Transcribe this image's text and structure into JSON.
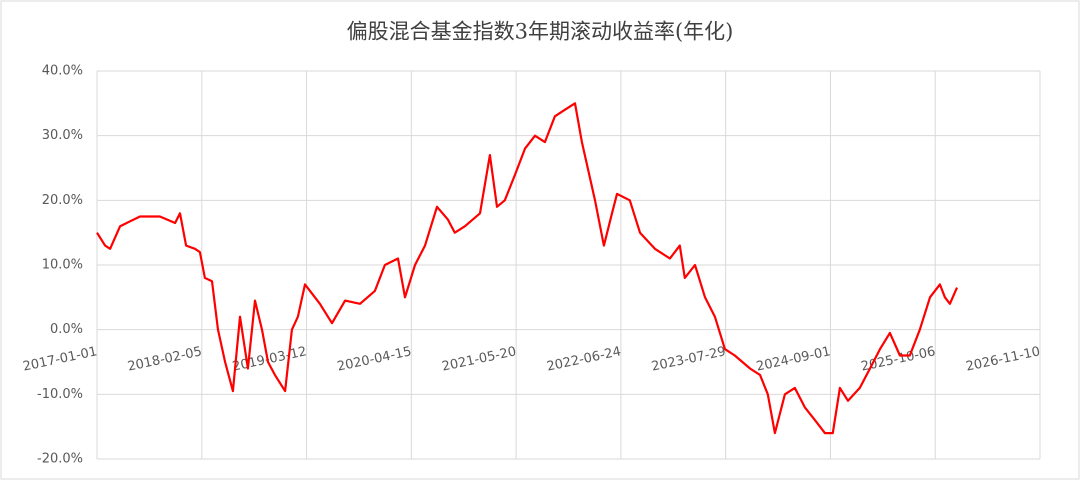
{
  "chart_data": {
    "type": "line",
    "title": "偏股混合基金指数3年期滚动收益率(年化)",
    "x": [
      "2017-01-01",
      "2017-02-01",
      "2017-02-20",
      "2017-03-30",
      "2017-06-14",
      "2017-08-29",
      "2017-10-26",
      "2017-11-14",
      "2017-12-07",
      "2018-01-10",
      "2018-01-29",
      "2018-02-17",
      "2018-03-16",
      "2018-04-08",
      "2018-05-05",
      "2018-06-04",
      "2018-07-01",
      "2018-07-31",
      "2018-08-27",
      "2018-09-23",
      "2018-10-16",
      "2018-11-11",
      "2018-12-20",
      "2019-01-15",
      "2019-02-07",
      "2019-03-06",
      "2019-05-02",
      "2019-06-17",
      "2019-08-06",
      "2019-10-02",
      "2019-11-28",
      "2020-01-05",
      "2020-02-24",
      "2020-03-22",
      "2020-04-29",
      "2020-06-06",
      "2020-07-22",
      "2020-09-02",
      "2020-09-28",
      "2020-11-06",
      "2021-01-02",
      "2021-02-09",
      "2021-03-08",
      "2021-04-07",
      "2021-05-16",
      "2021-06-23",
      "2021-07-31",
      "2021-09-07",
      "2021-10-15",
      "2021-11-22",
      "2021-12-31",
      "2022-01-26",
      "2022-03-17",
      "2022-04-20",
      "2022-05-21",
      "2022-06-09",
      "2022-07-28",
      "2022-09-05",
      "2022-11-01",
      "2022-12-28",
      "2023-02-04",
      "2023-02-23",
      "2023-04-03",
      "2023-05-11",
      "2023-06-18",
      "2023-07-26",
      "2023-09-02",
      "2023-10-30",
      "2023-12-07",
      "2024-01-06",
      "2024-02-02",
      "2024-03-11",
      "2024-04-18",
      "2024-05-26",
      "2024-07-04",
      "2024-08-11",
      "2024-09-10",
      "2024-10-07",
      "2024-11-07",
      "2024-12-22",
      "2025-01-30",
      "2025-03-09",
      "2025-04-16",
      "2025-05-24",
      "2025-07-01",
      "2025-08-08",
      "2025-09-16",
      "2025-10-24",
      "2025-11-12",
      "2025-12-01",
      "2025-12-28"
    ],
    "series": [
      {
        "color": "#ff0000",
        "values": [
          15,
          13,
          12.5,
          16,
          17.5,
          17.5,
          16.5,
          18,
          13,
          12.5,
          12,
          8,
          7.5,
          0,
          -5,
          -9.5,
          2,
          -6,
          4.5,
          0,
          -5,
          -7,
          -9.5,
          0,
          2,
          7,
          4,
          1,
          4.5,
          4,
          6,
          10,
          11,
          5,
          10,
          13,
          19,
          17,
          15,
          16,
          18,
          27,
          19,
          20,
          24,
          28,
          30,
          29,
          33,
          34,
          35,
          29,
          20,
          13,
          18,
          21,
          20,
          15,
          12.5,
          11,
          13,
          8,
          10,
          5,
          2,
          -3,
          -4,
          -6,
          -7,
          -10,
          -16,
          -10,
          -9,
          -12,
          -14,
          -16,
          -16,
          -9,
          -11,
          -9,
          -6,
          -3,
          -0.5,
          -4,
          -4,
          0,
          5,
          7,
          5,
          4,
          6.5
        ]
      }
    ],
    "xlim": [
      "2017-01-01",
      "2026-11-10"
    ],
    "xticks": [
      "2017-01-01",
      "2018-02-05",
      "2019-03-12",
      "2020-04-15",
      "2021-05-20",
      "2022-06-24",
      "2023-07-29",
      "2024-09-01",
      "2025-10-06",
      "2026-11-10"
    ],
    "ylim": [
      -20,
      40
    ],
    "yticks": [
      {
        "value": -20,
        "label": "-20.0%"
      },
      {
        "value": -10,
        "label": "-10.0%"
      },
      {
        "value": 0,
        "label": "0.0%"
      },
      {
        "value": 10,
        "label": "10.0%"
      },
      {
        "value": 20,
        "label": "20.0%"
      },
      {
        "value": 30,
        "label": "30.0%"
      },
      {
        "value": 40,
        "label": "40.0%"
      }
    ],
    "grid": true
  }
}
